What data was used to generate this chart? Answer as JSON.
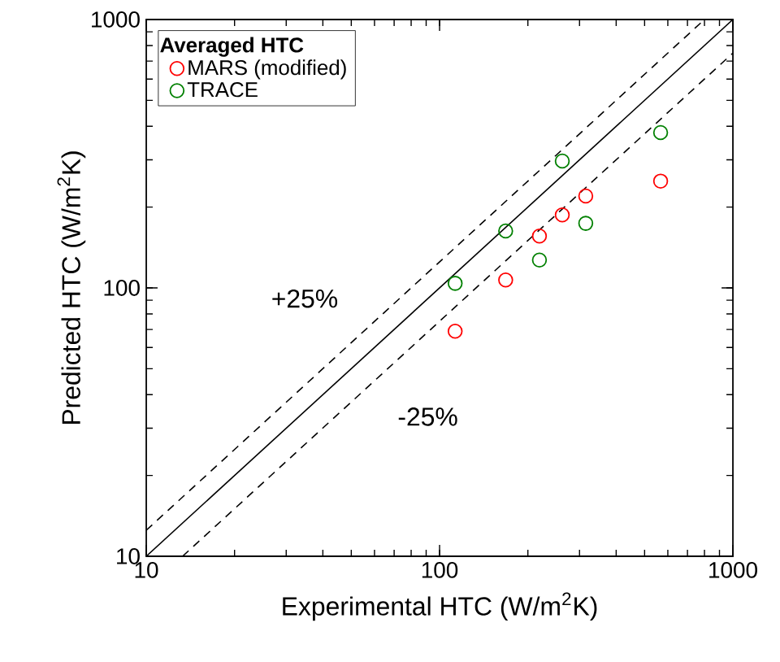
{
  "chart_data": {
    "type": "scatter",
    "xlabel": "Experimental HTC (W/m$^{2}$K)",
    "ylabel": "Predicted HTC (W/m$^{2}$K)",
    "legend_title": "Averaged HTC",
    "log": "xy",
    "xlim": [
      10,
      1000
    ],
    "ylim": [
      10,
      1000
    ],
    "xticks": [
      10,
      100,
      1000
    ],
    "yticks": [
      10,
      100,
      1000
    ],
    "legend": "top left",
    "marker": "circle",
    "grid": false,
    "x": [
      113,
      168,
      219,
      262,
      315,
      567
    ],
    "series": [
      {
        "name": "MARS (modified)",
        "color": "#ff0000",
        "values": [
          69,
          107,
          156,
          187,
          220,
          250
        ]
      },
      {
        "name": "TRACE",
        "color": "#008000",
        "values": [
          104,
          163,
          127,
          297,
          174,
          379
        ]
      },
      {
        "type": "line",
        "color": "#000000",
        "line_style": "solid",
        "marker": "none",
        "x": [
          10,
          1000
        ],
        "values": [
          10,
          1000
        ]
      },
      {
        "type": "line",
        "color": "#000000",
        "line_style": "dashed",
        "marker": "none",
        "x": [
          10,
          800
        ],
        "values": [
          12.5,
          1000
        ]
      },
      {
        "type": "line",
        "color": "#000000",
        "line_style": "dashed",
        "marker": "none",
        "x": [
          13.3,
          1000
        ],
        "values": [
          10,
          750
        ]
      }
    ],
    "annotations": [
      "+25%",
      "-25%"
    ]
  }
}
